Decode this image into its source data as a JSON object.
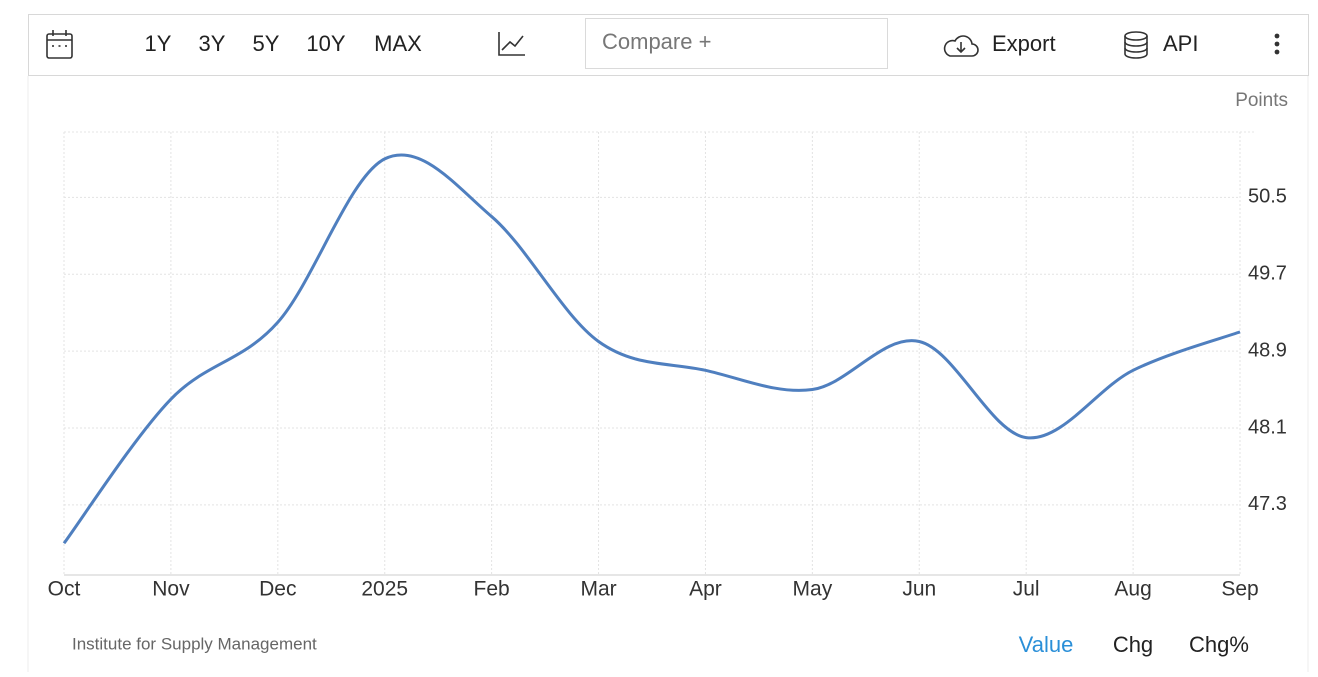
{
  "toolbar": {
    "ranges": [
      "1Y",
      "3Y",
      "5Y",
      "10Y",
      "MAX"
    ],
    "compare": "Compare +",
    "export": "Export",
    "api": "API"
  },
  "chart_data": {
    "type": "line",
    "ylabel": "Points",
    "categories": [
      "Oct",
      "Nov",
      "Dec",
      "2025",
      "Feb",
      "Mar",
      "Apr",
      "May",
      "Jun",
      "Jul",
      "Aug",
      "Sep"
    ],
    "series": [
      {
        "name": "Value",
        "color": "#4f7fbf",
        "values": [
          46.9,
          48.4,
          49.2,
          50.9,
          50.3,
          49.0,
          48.7,
          48.5,
          49.0,
          48.0,
          48.7,
          49.1
        ]
      }
    ],
    "ylim": [
      46.57,
      51.18
    ],
    "yticks": [
      47.3,
      48.1,
      48.9,
      49.7,
      50.5
    ],
    "grid": true
  },
  "footer": {
    "source": "Institute for Supply Management",
    "tabs": [
      "Value",
      "Chg",
      "Chg%"
    ]
  }
}
